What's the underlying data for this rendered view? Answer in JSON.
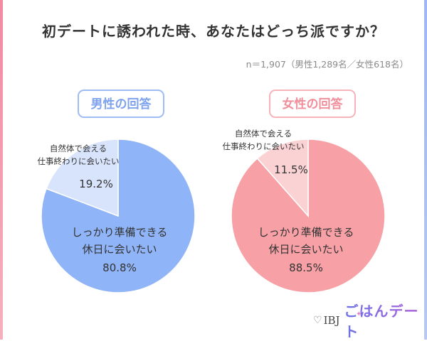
{
  "title": "初デートに誘われた時、あなたはどっち派ですか？",
  "sample_note": "n＝1,907（男性1,289名／女性618名）",
  "colors": {
    "male_main": "#8fb4f7",
    "male_minor": "#d8e4fc",
    "male_badge": "#7fa2ee",
    "female_main": "#f7a1a6",
    "female_minor": "#fbd2d4",
    "female_badge": "#f08f9b",
    "text": "#333333"
  },
  "chart_data": [
    {
      "type": "pie",
      "title": "男性の回答",
      "slices": [
        {
          "label": [
            "しっかり準備できる",
            "休日に会いたい"
          ],
          "value": 80.8,
          "display": "80.8%"
        },
        {
          "label": [
            "自然体で会える",
            "仕事終わりに会いたい"
          ],
          "value": 19.2,
          "display": "19.2%"
        }
      ]
    },
    {
      "type": "pie",
      "title": "女性の回答",
      "slices": [
        {
          "label": [
            "しっかり準備できる",
            "休日に会いたい"
          ],
          "value": 88.5,
          "display": "88.5%"
        },
        {
          "label": [
            "自然体で会える",
            "仕事終わりに会いたい"
          ],
          "value": 11.5,
          "display": "11.5%"
        }
      ]
    }
  ],
  "logo": {
    "heart_icon": "heart-icon",
    "brand_prefix": "IBJ",
    "brand_name": "ごはんデート",
    "spark": "✦"
  }
}
